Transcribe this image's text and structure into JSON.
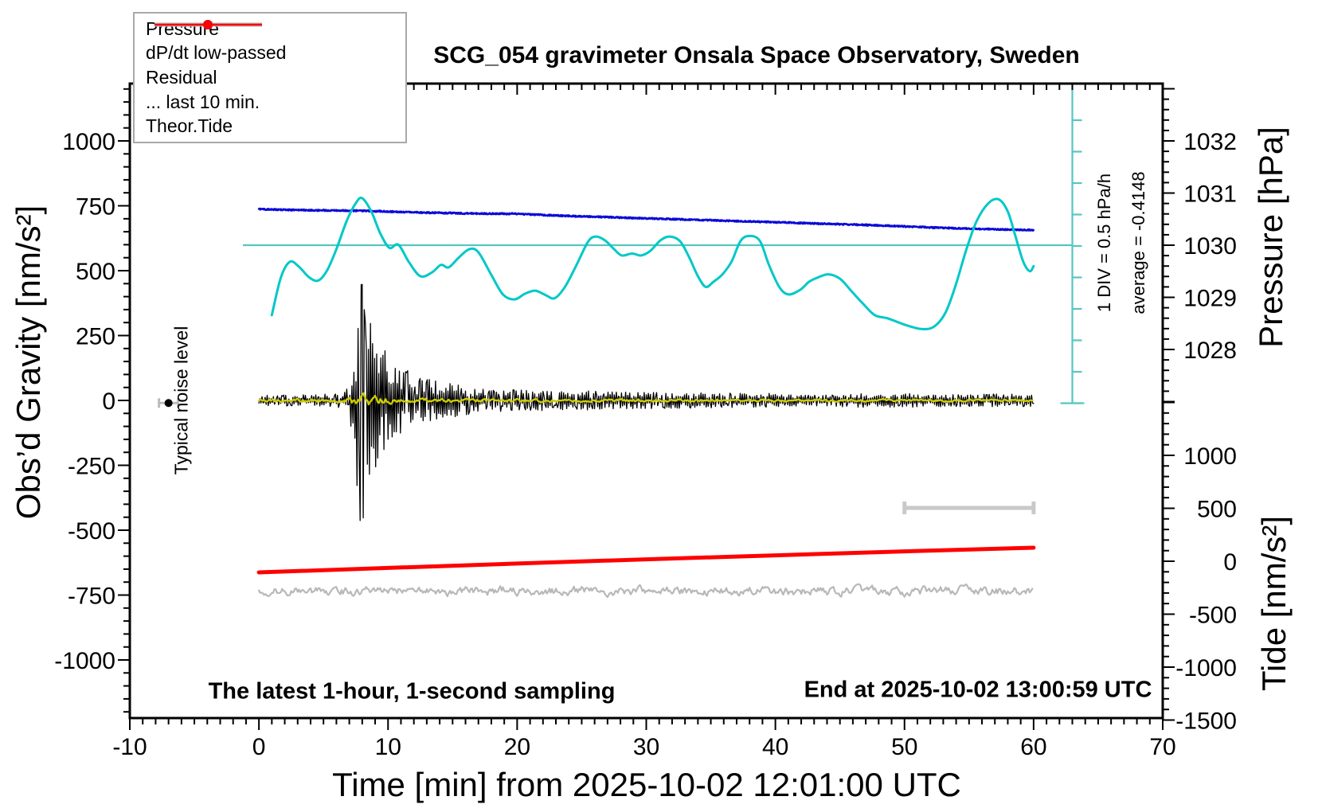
{
  "title": "SCG_054 gravimeter Onsala Space Observatory, Sweden",
  "annotations": {
    "sampling_note": "The latest 1-hour, 1-second sampling",
    "end_note": "End at 2025-10-02 13:00:59 UTC",
    "noise_label": "Typical noise level",
    "div_label": "1 DIV = 0.5 hPa/h",
    "avg_label": "average = -0.4148"
  },
  "legend": {
    "entries": [
      {
        "label": "Pressure",
        "color": "#0b0bd8",
        "marker": "dot",
        "line_width": 2.5
      },
      {
        "label": "dP/dt low-passed",
        "color": "#00c8c8",
        "marker": "dot",
        "line_width": 2.5
      },
      {
        "label": "Residual",
        "color": "#000000",
        "marker": "none",
        "line_width": 5
      },
      {
        "label": "... last 10 min.",
        "color": "#b8b8b8",
        "marker": "none",
        "line_width": 5
      },
      {
        "label": "Theor.Tide",
        "color": "#ff0000",
        "marker": "dot",
        "line_width": 2.5
      }
    ]
  },
  "chart_data": {
    "type": "line",
    "title": "SCG_054 gravimeter Onsala Space Observatory, Sweden",
    "x_axis": {
      "label": "Time [min] from 2025-10-02 12:01:00 UTC",
      "range": [
        -10,
        70
      ],
      "major_tick": 10,
      "minor_tick": 1,
      "ticks": [
        -10,
        0,
        10,
        20,
        30,
        40,
        50,
        60,
        70
      ]
    },
    "gravity_axis": {
      "label": "Obs’d Gravity [nm/s²]",
      "range": [
        -1225,
        1250
      ],
      "major_tick": 250,
      "minor_tick": 50,
      "ticks": [
        1000,
        750,
        500,
        250,
        0,
        -250,
        -500,
        -750,
        -1000
      ]
    },
    "pressure_axis": {
      "label": "Pressure [hPa]",
      "range_shown": [
        1027,
        1033
      ],
      "major_tick": 1,
      "minor_tick": 0.2,
      "ticks": [
        1032,
        1031,
        1030,
        1029,
        1028
      ]
    },
    "tide_axis": {
      "label": "Tide [nm/s²]",
      "range_shown": [
        -1500,
        1500
      ],
      "major_tick": 500,
      "minor_tick": 100,
      "ticks": [
        1000,
        500,
        0,
        -500,
        -1000,
        -1500
      ]
    },
    "series": [
      {
        "name": "Pressure",
        "axis": "pressure",
        "units": "hPa",
        "color": "#0b0bd8",
        "style": "noisy-line",
        "noise_sigma": 0.013,
        "points": [
          [
            0,
            1030.69
          ],
          [
            4,
            1030.67
          ],
          [
            8,
            1030.66
          ],
          [
            12,
            1030.63
          ],
          [
            16,
            1030.61
          ],
          [
            20,
            1030.6
          ],
          [
            24,
            1030.56
          ],
          [
            28,
            1030.53
          ],
          [
            32,
            1030.5
          ],
          [
            36,
            1030.47
          ],
          [
            40,
            1030.44
          ],
          [
            44,
            1030.41
          ],
          [
            48,
            1030.38
          ],
          [
            52,
            1030.34
          ],
          [
            56,
            1030.31
          ],
          [
            60,
            1030.29
          ]
        ]
      },
      {
        "name": "dP/dt low-passed",
        "axis": "dpdt",
        "units": "hPa/h",
        "color": "#00c8c8",
        "style": "smooth-line",
        "points": [
          [
            1.0,
            -1.1
          ],
          [
            1.7,
            -0.5
          ],
          [
            2.4,
            -0.25
          ],
          [
            3.1,
            -0.33
          ],
          [
            3.9,
            -0.5
          ],
          [
            4.6,
            -0.55
          ],
          [
            5.3,
            -0.38
          ],
          [
            6.0,
            -0.05
          ],
          [
            6.8,
            0.4
          ],
          [
            7.5,
            0.68
          ],
          [
            8.0,
            0.76
          ],
          [
            8.7,
            0.55
          ],
          [
            9.4,
            0.2
          ],
          [
            10.1,
            -0.03
          ],
          [
            10.8,
            0.02
          ],
          [
            11.6,
            -0.25
          ],
          [
            12.5,
            -0.48
          ],
          [
            13.4,
            -0.42
          ],
          [
            14.1,
            -0.3
          ],
          [
            14.7,
            -0.34
          ],
          [
            15.5,
            -0.18
          ],
          [
            16.3,
            -0.05
          ],
          [
            17.0,
            -0.1
          ],
          [
            18.0,
            -0.46
          ],
          [
            18.9,
            -0.77
          ],
          [
            19.8,
            -0.85
          ],
          [
            20.6,
            -0.76
          ],
          [
            21.4,
            -0.71
          ],
          [
            22.2,
            -0.78
          ],
          [
            22.9,
            -0.83
          ],
          [
            23.7,
            -0.65
          ],
          [
            24.6,
            -0.3
          ],
          [
            25.5,
            0.07
          ],
          [
            26.1,
            0.15
          ],
          [
            26.8,
            0.09
          ],
          [
            27.5,
            -0.05
          ],
          [
            28.1,
            -0.15
          ],
          [
            28.9,
            -0.12
          ],
          [
            29.6,
            -0.15
          ],
          [
            30.3,
            -0.08
          ],
          [
            31.1,
            0.09
          ],
          [
            31.8,
            0.15
          ],
          [
            32.6,
            0.08
          ],
          [
            33.3,
            -0.17
          ],
          [
            34.0,
            -0.48
          ],
          [
            34.6,
            -0.65
          ],
          [
            35.2,
            -0.57
          ],
          [
            35.9,
            -0.45
          ],
          [
            36.6,
            -0.25
          ],
          [
            37.3,
            0.08
          ],
          [
            38.0,
            0.16
          ],
          [
            38.8,
            0.08
          ],
          [
            39.5,
            -0.3
          ],
          [
            40.3,
            -0.65
          ],
          [
            41.0,
            -0.77
          ],
          [
            41.9,
            -0.7
          ],
          [
            42.6,
            -0.57
          ],
          [
            43.3,
            -0.5
          ],
          [
            44.1,
            -0.45
          ],
          [
            45.0,
            -0.52
          ],
          [
            45.9,
            -0.72
          ],
          [
            46.8,
            -0.92
          ],
          [
            47.7,
            -1.1
          ],
          [
            48.7,
            -1.15
          ],
          [
            50.0,
            -1.25
          ],
          [
            51.3,
            -1.32
          ],
          [
            52.3,
            -1.28
          ],
          [
            53.2,
            -1.05
          ],
          [
            54.0,
            -0.6
          ],
          [
            54.8,
            -0.05
          ],
          [
            55.6,
            0.4
          ],
          [
            56.5,
            0.68
          ],
          [
            57.3,
            0.74
          ],
          [
            58.0,
            0.55
          ],
          [
            58.6,
            0.15
          ],
          [
            59.2,
            -0.25
          ],
          [
            59.7,
            -0.4
          ],
          [
            60.0,
            -0.32
          ]
        ]
      },
      {
        "name": "Residual",
        "axis": "gravity",
        "units": "nm/s²",
        "color": "#000000",
        "style": "seismogram",
        "envelope": [
          [
            0,
            20
          ],
          [
            3,
            22
          ],
          [
            5,
            24
          ],
          [
            6.5,
            28
          ],
          [
            7.0,
            60
          ],
          [
            7.4,
            200
          ],
          [
            7.7,
            420
          ],
          [
            7.95,
            520
          ],
          [
            8.2,
            460
          ],
          [
            8.5,
            380
          ],
          [
            8.9,
            300
          ],
          [
            9.4,
            230
          ],
          [
            10.0,
            180
          ],
          [
            10.8,
            140
          ],
          [
            11.8,
            110
          ],
          [
            13,
            85
          ],
          [
            14.5,
            70
          ],
          [
            16,
            55
          ],
          [
            18,
            45
          ],
          [
            20,
            42
          ],
          [
            22,
            40
          ],
          [
            24,
            38
          ],
          [
            26,
            36
          ],
          [
            28,
            34
          ],
          [
            30,
            32
          ],
          [
            33,
            30
          ],
          [
            36,
            28
          ],
          [
            40,
            27
          ],
          [
            44,
            26
          ],
          [
            48,
            27
          ],
          [
            52,
            26
          ],
          [
            56,
            25
          ],
          [
            60,
            24
          ]
        ],
        "peak": {
          "t": 7.95,
          "max": 480,
          "min": -550
        }
      },
      {
        "name": "Residual low-passed",
        "axis": "gravity",
        "units": "nm/s²",
        "color": "#cccc00",
        "style": "seismogram",
        "envelope": [
          [
            0,
            6
          ],
          [
            6.5,
            7
          ],
          [
            7.3,
            18
          ],
          [
            8,
            26
          ],
          [
            8.7,
            20
          ],
          [
            9.5,
            14
          ],
          [
            11,
            9
          ],
          [
            14,
            7
          ],
          [
            20,
            6
          ],
          [
            30,
            6
          ],
          [
            40,
            5
          ],
          [
            50,
            5
          ],
          [
            60,
            5
          ]
        ]
      },
      {
        "name": "... last 10 min.",
        "axis": "gravity",
        "units": "nm/s²",
        "color": "#b8b8b8",
        "style": "noisy-line-offset",
        "offset": -735,
        "noise_sigma": 15
      },
      {
        "name": "Theor.Tide",
        "axis": "tide",
        "units": "nm/s²",
        "color": "#ff0000",
        "style": "line",
        "points": [
          [
            0,
            -105
          ],
          [
            10,
            -63
          ],
          [
            20,
            -22
          ],
          [
            30,
            18
          ],
          [
            40,
            56
          ],
          [
            50,
            93
          ],
          [
            60,
            128
          ]
        ]
      }
    ],
    "reference": {
      "pressure_ref_line_hPa": 1030,
      "ref_color": "#55c6c2",
      "div_scale": {
        "t": 63,
        "div_value_hPa_per_h": 0.5,
        "divisions": 10,
        "average": -0.4148
      },
      "last10_window_bar": {
        "t_start": 50,
        "t_end": 60,
        "gravity": -414,
        "color": "#c9c9c9"
      },
      "noise_marker": {
        "t": -7,
        "gravity": -10,
        "bar_color": "#bbbbbb",
        "dot_color": "#000000"
      }
    }
  }
}
